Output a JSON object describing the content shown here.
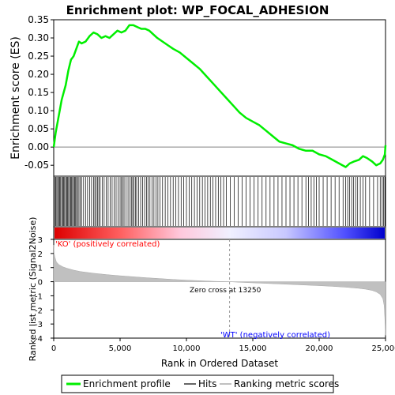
{
  "title": "Enrichment plot: WP_FOCAL_ADHESION",
  "colors": {
    "enrichment_line": "#00ee00",
    "hits": "#000000",
    "ranking_fill": "#c0c0c0",
    "pos_band": "#ff0000",
    "neg_band": "#0000ff",
    "axis": "#000000",
    "zero_line": "#808080",
    "ko_label": "#ff0000",
    "wt_label": "#0000ff"
  },
  "chart_data": [
    {
      "type": "line",
      "panel": "enrichment",
      "ylabel": "Enrichment score (ES)",
      "xlim": [
        0,
        25000
      ],
      "ylim": [
        -0.08,
        0.35
      ],
      "yticks": [
        "0.35",
        "0.30",
        "0.25",
        "0.20",
        "0.15",
        "0.10",
        "0.05",
        "0.00",
        "-0.05"
      ],
      "grid": false,
      "x": [
        0,
        150,
        300,
        450,
        600,
        750,
        900,
        1100,
        1300,
        1500,
        1700,
        1900,
        2100,
        2400,
        2700,
        3000,
        3300,
        3600,
        3900,
        4200,
        4500,
        4800,
        5100,
        5400,
        5700,
        6000,
        6300,
        6600,
        6900,
        7200,
        7500,
        7800,
        8200,
        8600,
        9000,
        9500,
        10000,
        10500,
        11000,
        11500,
        12000,
        12500,
        13000,
        13500,
        14000,
        14500,
        15000,
        15500,
        16000,
        16500,
        17000,
        17500,
        18000,
        18500,
        19000,
        19500,
        20000,
        20500,
        21000,
        21500,
        22000,
        22300,
        22600,
        23000,
        23300,
        23600,
        24000,
        24300,
        24600,
        24800,
        24950,
        25000
      ],
      "y": [
        0.0,
        0.04,
        0.07,
        0.1,
        0.13,
        0.15,
        0.17,
        0.21,
        0.24,
        0.25,
        0.27,
        0.29,
        0.285,
        0.29,
        0.305,
        0.315,
        0.31,
        0.3,
        0.305,
        0.3,
        0.31,
        0.32,
        0.315,
        0.32,
        0.335,
        0.335,
        0.33,
        0.325,
        0.325,
        0.32,
        0.31,
        0.3,
        0.29,
        0.28,
        0.27,
        0.26,
        0.245,
        0.23,
        0.215,
        0.195,
        0.175,
        0.155,
        0.135,
        0.115,
        0.095,
        0.08,
        0.07,
        0.06,
        0.045,
        0.03,
        0.015,
        0.01,
        0.005,
        -0.005,
        -0.01,
        -0.01,
        -0.02,
        -0.025,
        -0.035,
        -0.045,
        -0.055,
        -0.045,
        -0.04,
        -0.035,
        -0.025,
        -0.03,
        -0.04,
        -0.05,
        -0.045,
        -0.035,
        -0.02,
        0.005
      ]
    },
    {
      "type": "bar",
      "panel": "hits",
      "hit_ranks": [
        80,
        150,
        230,
        300,
        380,
        450,
        520,
        600,
        680,
        750,
        820,
        900,
        980,
        1050,
        1120,
        1200,
        1280,
        1350,
        1420,
        1500,
        1580,
        1650,
        1720,
        1800,
        1900,
        2000,
        2100,
        2250,
        2400,
        2550,
        2700,
        2850,
        3000,
        3100,
        3200,
        3300,
        3400,
        3500,
        3650,
        3800,
        3950,
        4100,
        4250,
        4400,
        4550,
        4700,
        4850,
        5000,
        5100,
        5200,
        5300,
        5450,
        5600,
        5750,
        5850,
        5950,
        6050,
        6150,
        6250,
        6400,
        6550,
        6700,
        6850,
        7000,
        7100,
        7250,
        7400,
        7550,
        7700,
        7850,
        8000,
        8200,
        8400,
        8600,
        8800,
        9000,
        9200,
        9400,
        9600,
        9800,
        10000,
        10200,
        10400,
        10600,
        10800,
        11000,
        11200,
        11400,
        11600,
        11800,
        12000,
        12200,
        12400,
        12600,
        12800,
        13000,
        13300,
        13600,
        13900,
        14200,
        14500,
        14800,
        15100,
        15400,
        15700,
        16000,
        16300,
        16600,
        16900,
        17200,
        17500,
        17800,
        18100,
        18400,
        18700,
        19000,
        19200,
        19400,
        19600,
        19800,
        20000,
        20300,
        20600,
        20900,
        21200,
        21500,
        21800,
        22000,
        22150,
        22300,
        22450,
        22600,
        22750,
        22900,
        23100,
        23300,
        23500,
        23800,
        24100,
        24400,
        24600,
        24750,
        24850,
        24950,
        25000
      ]
    },
    {
      "type": "area",
      "panel": "ranking",
      "ylabel": "Ranked list metric (Signal2Noise)",
      "xlabel": "Rank in Ordered Dataset",
      "xlim": [
        0,
        25000
      ],
      "ylim": [
        -4,
        3
      ],
      "yticks": [
        "3",
        "2",
        "1",
        "0",
        "-1",
        "-2",
        "-3",
        "-4"
      ],
      "xticks": [
        "0",
        "5,000",
        "10,000",
        "15,000",
        "20,000",
        "25,000"
      ],
      "x": [
        0,
        30,
        100,
        200,
        400,
        700,
        1000,
        1500,
        2000,
        3000,
        4000,
        5000,
        6000,
        7000,
        8000,
        9000,
        10000,
        11000,
        12000,
        13250,
        14000,
        15000,
        16000,
        17000,
        18000,
        19000,
        20000,
        21000,
        22000,
        23000,
        23500,
        24000,
        24300,
        24600,
        24800,
        24900,
        24950,
        25000
      ],
      "y": [
        2.6,
        2.0,
        1.7,
        1.4,
        1.2,
        1.05,
        0.95,
        0.82,
        0.72,
        0.6,
        0.5,
        0.42,
        0.35,
        0.28,
        0.22,
        0.16,
        0.11,
        0.07,
        0.03,
        0.0,
        -0.04,
        -0.08,
        -0.12,
        -0.16,
        -0.2,
        -0.24,
        -0.28,
        -0.33,
        -0.39,
        -0.47,
        -0.53,
        -0.62,
        -0.72,
        -0.9,
        -1.2,
        -1.7,
        -2.6,
        -3.8
      ],
      "zero_cross_label": "Zero cross at 13250",
      "zero_cross_rank": 13250,
      "pos_label": "'KO' (positively correlated)",
      "neg_label": "'WT' (negatively correlated)"
    }
  ],
  "legend": {
    "items": [
      {
        "label": "Enrichment profile",
        "color": "#00ee00"
      },
      {
        "label": "Hits",
        "color": "#666666"
      },
      {
        "label": "Ranking metric scores",
        "color": "#c0c0c0"
      }
    ]
  }
}
